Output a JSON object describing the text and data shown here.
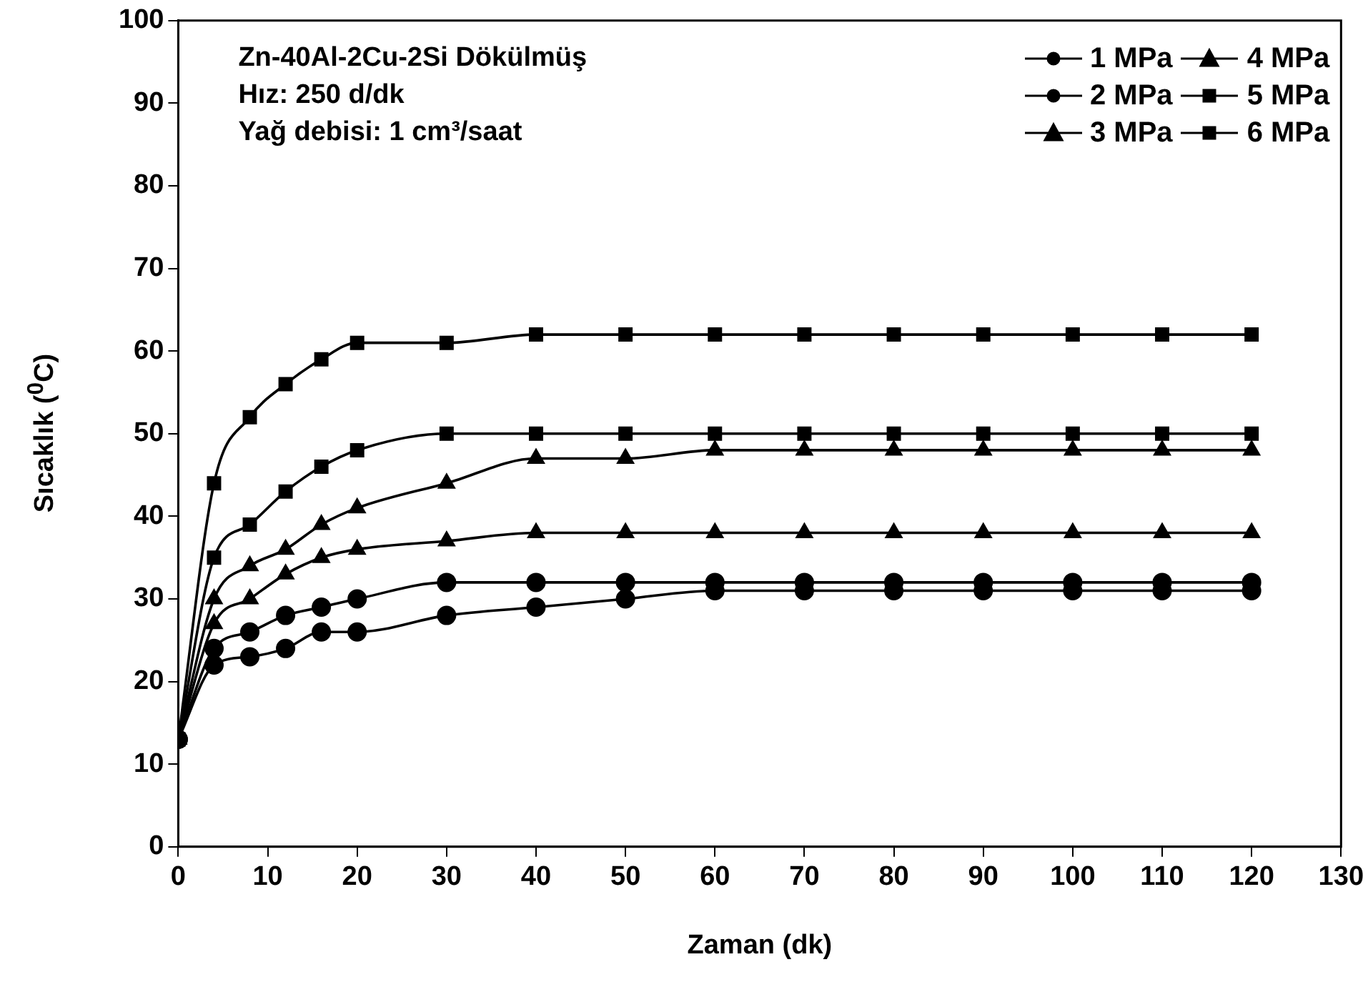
{
  "chart_data": {
    "type": "line",
    "annotations": [
      "Zn-40Al-2Cu-2Si Dökülmüş",
      "Hız: 250 d/dk",
      "Yağ debisi: 1 cm³/saat"
    ],
    "xlabel": "Zaman (dk)",
    "ylabel": "Sıcaklık ($^{0}$C)",
    "x": [
      0,
      4,
      8,
      12,
      16,
      20,
      30,
      40,
      50,
      60,
      70,
      80,
      90,
      100,
      110,
      120
    ],
    "series": [
      {
        "name": "1 MPa",
        "color": "#000000",
        "marker": "circle",
        "values": [
          13,
          22,
          23,
          24,
          26,
          26,
          28,
          29,
          30,
          31,
          31,
          31,
          31,
          31,
          31,
          31
        ]
      },
      {
        "name": "2 MPa",
        "color": "#000000",
        "marker": "circle",
        "values": [
          13,
          24,
          26,
          28,
          29,
          30,
          32,
          32,
          32,
          32,
          32,
          32,
          32,
          32,
          32,
          32
        ]
      },
      {
        "name": "3 MPa",
        "color": "#000000",
        "marker": "triangle",
        "values": [
          13,
          27,
          30,
          33,
          35,
          36,
          37,
          38,
          38,
          38,
          38,
          38,
          38,
          38,
          38,
          38
        ]
      },
      {
        "name": "4 MPa",
        "color": "#000000",
        "marker": "triangle",
        "values": [
          13,
          30,
          34,
          36,
          39,
          41,
          44,
          47,
          47,
          48,
          48,
          48,
          48,
          48,
          48,
          48
        ]
      },
      {
        "name": "5 MPa",
        "color": "#000000",
        "marker": "square",
        "values": [
          13,
          35,
          39,
          43,
          46,
          48,
          50,
          50,
          50,
          50,
          50,
          50,
          50,
          50,
          50,
          50
        ]
      },
      {
        "name": "6 MPa",
        "color": "#000000",
        "marker": "square",
        "values": [
          13,
          44,
          52,
          56,
          59,
          61,
          61,
          62,
          62,
          62,
          62,
          62,
          62,
          62,
          62,
          62
        ]
      }
    ],
    "xlim": [
      0,
      130
    ],
    "xticks": [
      0,
      10,
      20,
      30,
      40,
      50,
      60,
      70,
      80,
      90,
      100,
      110,
      120,
      130
    ],
    "ylim": [
      0,
      100
    ],
    "yticks": [
      0,
      10,
      20,
      30,
      40,
      50,
      60,
      70,
      80,
      90,
      100
    ],
    "grid": false,
    "legend": "top right",
    "line_style": "solid"
  }
}
